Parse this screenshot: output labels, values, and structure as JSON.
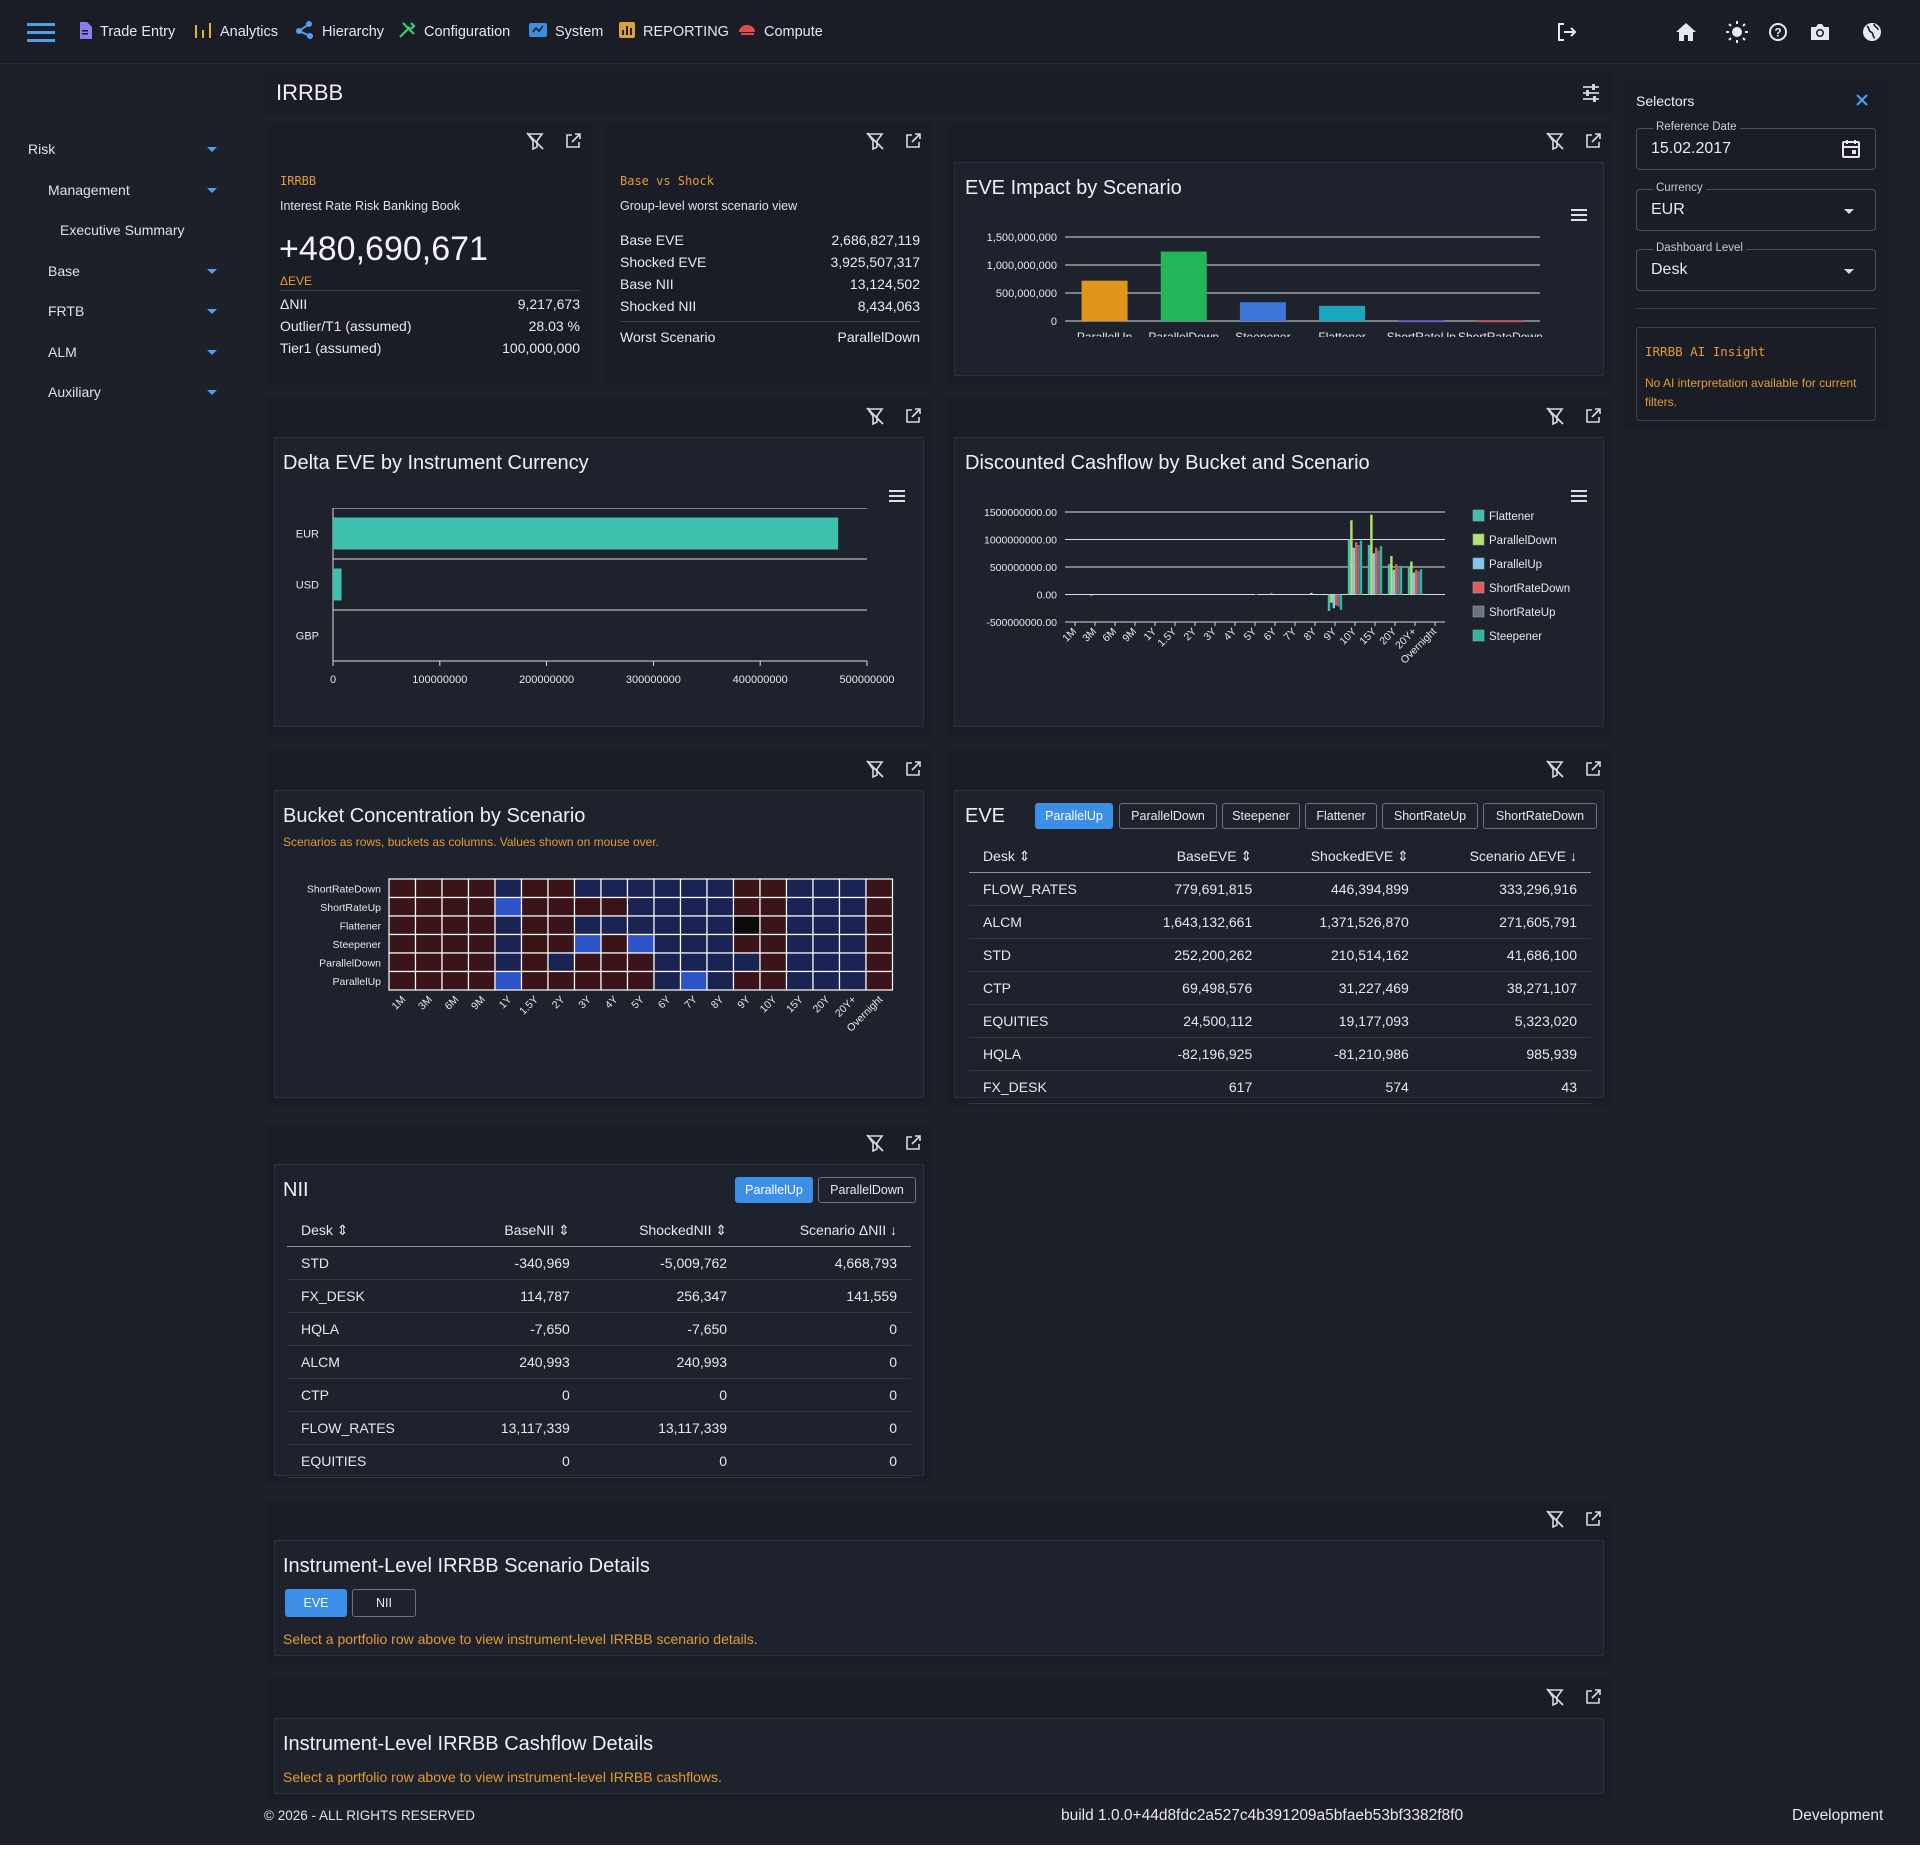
{
  "nav": {
    "items": [
      {
        "label": "Trade Entry",
        "icon": "document-icon"
      },
      {
        "label": "Analytics",
        "icon": "analytics-icon"
      },
      {
        "label": "Hierarchy",
        "icon": "hierarchy-icon"
      },
      {
        "label": "Configuration",
        "icon": "tools-icon"
      },
      {
        "label": "System",
        "icon": "system-icon"
      },
      {
        "label": "REPORTING",
        "icon": "reporting-icon"
      },
      {
        "label": "Compute",
        "icon": "compute-icon"
      }
    ]
  },
  "sidebar": {
    "risk": "Risk",
    "management": "Management",
    "executive_summary": "Executive Summary",
    "base": "Base",
    "frtb": "FRTB",
    "alm": "ALM",
    "auxiliary": "Auxiliary"
  },
  "page": {
    "title": "IRRBB"
  },
  "kpi1": {
    "tag": "IRRBB",
    "subtitle": "Interest Rate Risk Banking Book",
    "big_value": "+480,690,671",
    "big_label": "ΔEVE",
    "rows": [
      {
        "label": "ΔNII",
        "value": "9,217,673"
      },
      {
        "label": "Outlier/T1 (assumed)",
        "value": "28.03 %"
      },
      {
        "label": "Tier1 (assumed)",
        "value": "100,000,000"
      }
    ]
  },
  "kpi2": {
    "tag": "Base vs Shock",
    "subtitle": "Group-level worst scenario view",
    "rows": [
      {
        "label": "Base EVE",
        "value": "2,686,827,119"
      },
      {
        "label": "Shocked EVE",
        "value": "3,925,507,317"
      },
      {
        "label": "Base NII",
        "value": "13,124,502"
      },
      {
        "label": "Shocked NII",
        "value": "8,434,063"
      }
    ],
    "worst_label": "Worst Scenario",
    "worst_value": "ParallelDown"
  },
  "chart_data": [
    {
      "type": "bar",
      "title": "EVE Impact by Scenario",
      "categories": [
        "ParallelUp",
        "ParallelDown",
        "Steepener",
        "Flattener",
        "ShortRateUp",
        "ShortRateDown"
      ],
      "values": [
        720000000,
        1240000000,
        335000000,
        270000000,
        5000000,
        3000000
      ],
      "colors": [
        "#e0961a",
        "#22b55a",
        "#3f74d8",
        "#1aa6c1",
        "#6b5bd2",
        "#d04a4a"
      ],
      "ylim": [
        0,
        1500000000
      ],
      "yticks": [
        "0",
        "500,000,000",
        "1,000,000,000",
        "1,500,000,000"
      ],
      "xlabel": "",
      "ylabel": ""
    },
    {
      "type": "bar",
      "orientation": "horizontal",
      "title": "Delta EVE by Instrument Currency",
      "categories": [
        "EUR",
        "USD",
        "GBP"
      ],
      "values": [
        473000000,
        8000000,
        0
      ],
      "color": "#3fbfae",
      "xlim": [
        0,
        500000000
      ],
      "xticks": [
        "0",
        "100000000",
        "200000000",
        "300000000",
        "400000000",
        "500000000"
      ]
    },
    {
      "type": "bar",
      "title": "Discounted Cashflow by Bucket and Scenario",
      "categories": [
        "1M",
        "3M",
        "6M",
        "9M",
        "1Y",
        "1.5Y",
        "2Y",
        "3Y",
        "4Y",
        "5Y",
        "6Y",
        "7Y",
        "8Y",
        "9Y",
        "10Y",
        "15Y",
        "20Y",
        "20Y+",
        "Overnight"
      ],
      "ylim": [
        -500000000,
        1500000000
      ],
      "yticks": [
        "-500000000.00",
        "0.00",
        "500000000.00",
        "1000000000.00",
        "1500000000.00"
      ],
      "legend_position": "right",
      "series": [
        {
          "name": "Flattener",
          "color": "#3fbfae",
          "values": [
            0,
            0,
            0,
            0,
            0,
            0,
            0,
            0,
            0,
            0,
            0,
            0,
            0,
            -300000000,
            1000000000,
            900000000,
            550000000,
            500000000,
            0
          ]
        },
        {
          "name": "ParallelDown",
          "color": "#b4e36a",
          "values": [
            0,
            -20000000,
            0,
            0,
            0,
            0,
            0,
            0,
            0,
            0,
            20000000,
            0,
            30000000,
            -150000000,
            1350000000,
            1450000000,
            700000000,
            600000000,
            0
          ]
        },
        {
          "name": "ParallelUp",
          "color": "#7fc8ee",
          "values": [
            0,
            0,
            0,
            0,
            0,
            0,
            0,
            0,
            0,
            0,
            0,
            0,
            0,
            -250000000,
            850000000,
            750000000,
            450000000,
            400000000,
            0
          ]
        },
        {
          "name": "ShortRateDown",
          "color": "#e25b5b",
          "values": [
            0,
            0,
            0,
            0,
            0,
            0,
            0,
            0,
            0,
            10000000,
            0,
            0,
            0,
            -200000000,
            950000000,
            850000000,
            550000000,
            450000000,
            0
          ]
        },
        {
          "name": "ShortRateUp",
          "color": "#6b7280",
          "values": [
            0,
            0,
            0,
            0,
            0,
            0,
            0,
            0,
            0,
            0,
            0,
            0,
            0,
            -220000000,
            900000000,
            800000000,
            500000000,
            420000000,
            0
          ]
        },
        {
          "name": "Steepener",
          "color": "#2fb59d",
          "values": [
            0,
            0,
            0,
            0,
            0,
            0,
            0,
            0,
            0,
            0,
            0,
            0,
            0,
            -280000000,
            980000000,
            880000000,
            520000000,
            460000000,
            0
          ]
        }
      ]
    },
    {
      "type": "heatmap",
      "title": "Bucket Concentration by Scenario",
      "rows": [
        "ShortRateDown",
        "ShortRateUp",
        "Flattener",
        "Steepener",
        "ParallelDown",
        "ParallelUp"
      ],
      "columns": [
        "1M",
        "3M",
        "6M",
        "9M",
        "1Y",
        "1.5Y",
        "2Y",
        "3Y",
        "4Y",
        "5Y",
        "6Y",
        "7Y",
        "8Y",
        "9Y",
        "10Y",
        "15Y",
        "20Y",
        "20Y+",
        "Overnight"
      ],
      "cells": [
        [
          1,
          1,
          1,
          1,
          -1,
          1,
          1,
          -1,
          -1,
          -1,
          -1,
          -1,
          -1,
          1,
          1,
          -1,
          -1,
          -1,
          1
        ],
        [
          1,
          1,
          1,
          1,
          -2,
          1,
          1,
          1,
          1,
          -1,
          -1,
          -1,
          -1,
          1,
          1,
          -1,
          -1,
          -1,
          1
        ],
        [
          1,
          1,
          1,
          1,
          -1,
          1,
          1,
          -1,
          -1,
          -1,
          -1,
          -1,
          -1,
          0,
          1,
          -1,
          -1,
          -1,
          1
        ],
        [
          1,
          1,
          1,
          1,
          -1,
          1,
          1,
          -2,
          1,
          -2,
          -1,
          -1,
          -1,
          1,
          1,
          -1,
          -1,
          -1,
          1
        ],
        [
          1,
          1,
          1,
          1,
          -1,
          1,
          -1,
          1,
          1,
          1,
          -1,
          -1,
          -1,
          -1,
          1,
          -1,
          -1,
          -1,
          1
        ],
        [
          1,
          1,
          1,
          1,
          -2,
          1,
          1,
          1,
          1,
          1,
          -1,
          -2,
          -1,
          1,
          1,
          -1,
          -1,
          -1,
          1
        ]
      ]
    }
  ],
  "eve_chart": {
    "title": "EVE Impact by Scenario"
  },
  "delta_chart": {
    "title": "Delta EVE by Instrument Currency"
  },
  "dcf_chart": {
    "title": "Discounted Cashflow by Bucket and Scenario"
  },
  "heat": {
    "title": "Bucket Concentration by Scenario",
    "note": "Scenarios as rows, buckets as columns. Values shown on mouse over."
  },
  "eve_table": {
    "title": "EVE",
    "tabs": [
      "ParallelUp",
      "ParallelDown",
      "Steepener",
      "Flattener",
      "ShortRateUp",
      "ShortRateDown"
    ],
    "active_tab": "ParallelUp",
    "headers": [
      "Desk",
      "BaseEVE",
      "ShockedEVE",
      "Scenario ΔEVE"
    ],
    "rows": [
      [
        "FLOW_RATES",
        "779,691,815",
        "446,394,899",
        "333,296,916"
      ],
      [
        "ALCM",
        "1,643,132,661",
        "1,371,526,870",
        "271,605,791"
      ],
      [
        "STD",
        "252,200,262",
        "210,514,162",
        "41,686,100"
      ],
      [
        "CTP",
        "69,498,576",
        "31,227,469",
        "38,271,107"
      ],
      [
        "EQUITIES",
        "24,500,112",
        "19,177,093",
        "5,323,020"
      ],
      [
        "HQLA",
        "-82,196,925",
        "-81,210,986",
        "985,939"
      ],
      [
        "FX_DESK",
        "617",
        "574",
        "43"
      ]
    ]
  },
  "nii_table": {
    "title": "NII",
    "tabs": [
      "ParallelUp",
      "ParallelDown"
    ],
    "active_tab": "ParallelUp",
    "headers": [
      "Desk",
      "BaseNII",
      "ShockedNII",
      "Scenario ΔNII"
    ],
    "rows": [
      [
        "STD",
        "-340,969",
        "-5,009,762",
        "4,668,793"
      ],
      [
        "FX_DESK",
        "114,787",
        "256,347",
        "141,559"
      ],
      [
        "HQLA",
        "-7,650",
        "-7,650",
        "0"
      ],
      [
        "ALCM",
        "240,993",
        "240,993",
        "0"
      ],
      [
        "CTP",
        "0",
        "0",
        "0"
      ],
      [
        "FLOW_RATES",
        "13,117,339",
        "13,117,339",
        "0"
      ],
      [
        "EQUITIES",
        "0",
        "0",
        "0"
      ]
    ]
  },
  "details1": {
    "title": "Instrument-Level IRRBB Scenario Details",
    "tabs": [
      "EVE",
      "NII"
    ],
    "active_tab": "EVE",
    "message": "Select a portfolio row above to view instrument-level IRRBB scenario details."
  },
  "details2": {
    "title": "Instrument-Level IRRBB Cashflow Details",
    "message": "Select a portfolio row above to view instrument-level IRRBB cashflows."
  },
  "selectors": {
    "title": "Selectors",
    "ref_label": "Reference Date",
    "ref_value": "15.02.2017",
    "cur_label": "Currency",
    "cur_value": "EUR",
    "lvl_label": "Dashboard Level",
    "lvl_value": "Desk",
    "insight_title": "IRRBB AI Insight",
    "insight_text": "No AI interpretation available for current filters."
  },
  "footer": {
    "copyright": "© 2026 - ALL RIGHTS RESERVED",
    "build": "build 1.0.0+44d8fdc2a527c4b391209a5bfaeb53bf3382f8f0",
    "env": "Development"
  },
  "colors": {
    "accent": "#3d8ee6",
    "orange": "#e39c33",
    "bg": "#1d2029",
    "panel": "#1e222c"
  }
}
